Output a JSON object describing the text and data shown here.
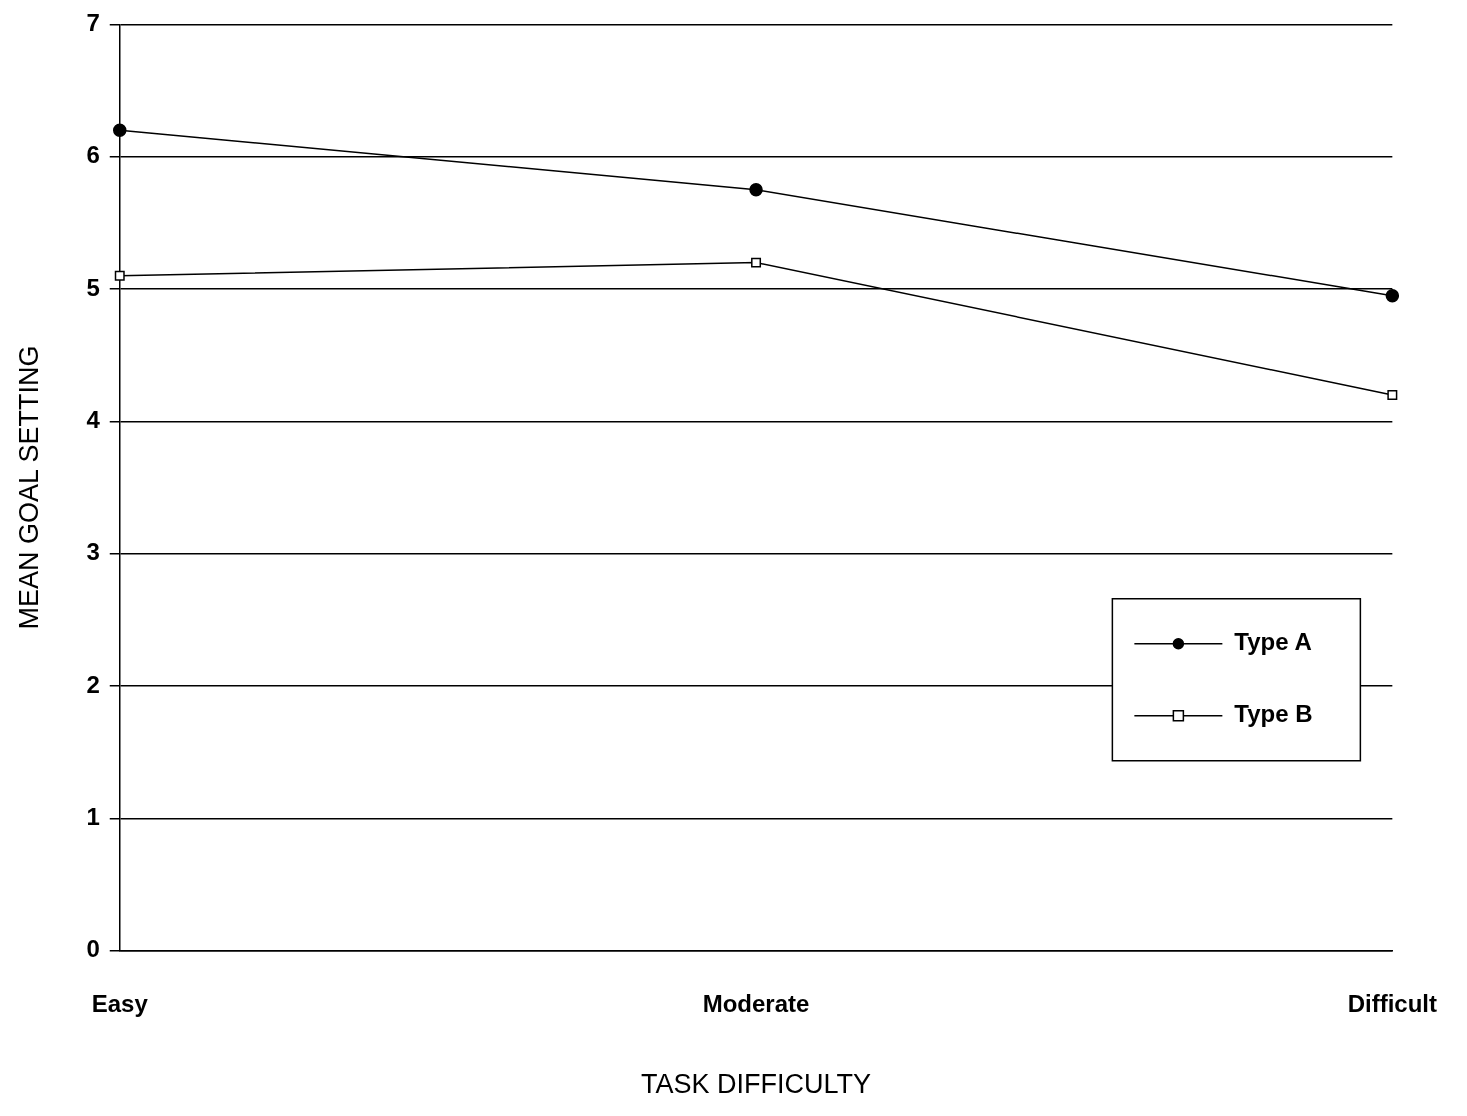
{
  "chart_data": {
    "type": "line",
    "xlabel": "TASK DIFFICULTY",
    "ylabel": "MEAN GOAL SETTING",
    "categories": [
      "Easy",
      "Moderate",
      "Difficult"
    ],
    "series": [
      {
        "name": "Type A",
        "color": "#000000",
        "marker": "circle",
        "values": [
          6.2,
          5.75,
          4.95
        ]
      },
      {
        "name": "Type B",
        "color": "#000000",
        "marker": "square",
        "values": [
          5.1,
          5.2,
          4.2
        ]
      }
    ],
    "ylim": [
      0,
      7
    ],
    "yticks": [
      0,
      1,
      2,
      3,
      4,
      5,
      6,
      7
    ],
    "grid": "y",
    "legend": "right",
    "line_style": "solid"
  }
}
